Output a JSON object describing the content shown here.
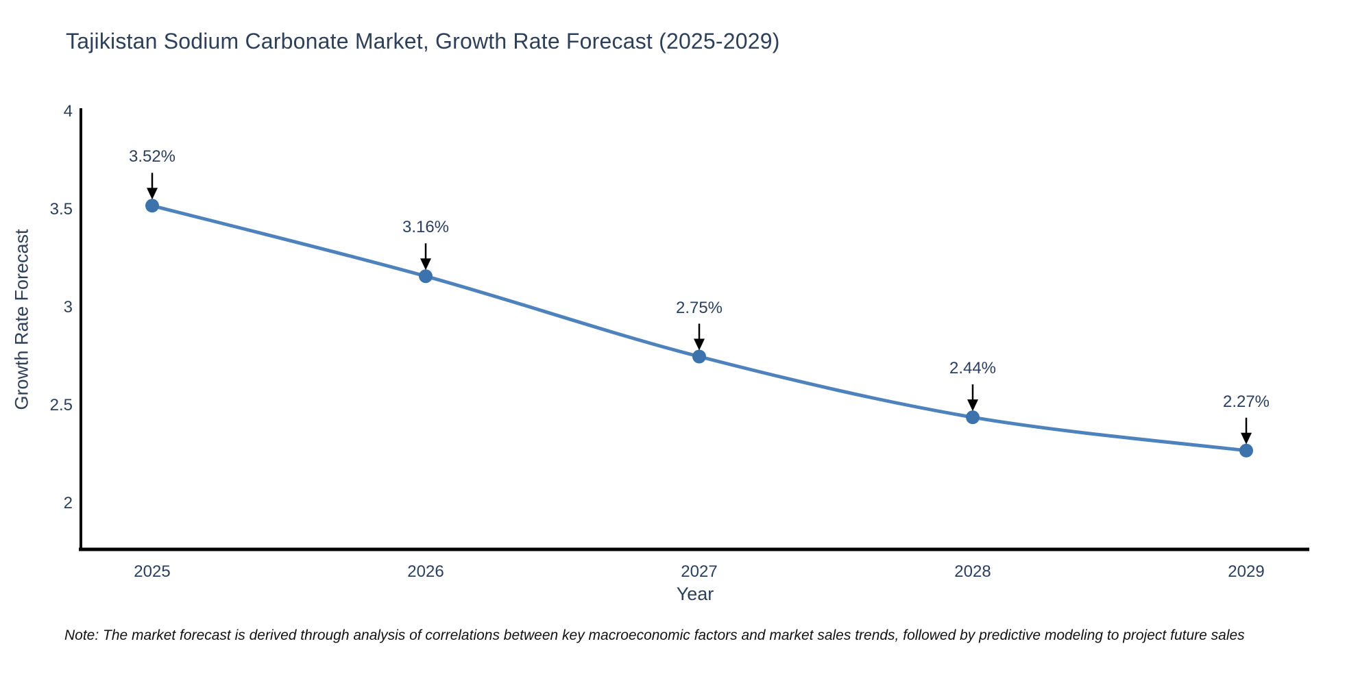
{
  "title": "Tajikistan Sodium Carbonate Market, Growth Rate Forecast (2025-2029)",
  "note": "Note: The market forecast is derived through analysis of correlations between key macroeconomic factors and market sales trends, followed by predictive modeling to project future sales",
  "chart_data": {
    "type": "line",
    "title": "Tajikistan Sodium Carbonate Market, Growth Rate Forecast (2025-2029)",
    "x": [
      2025,
      2026,
      2027,
      2028,
      2029
    ],
    "y": [
      3.52,
      3.16,
      2.75,
      2.44,
      2.27
    ],
    "point_labels": [
      "3.52%",
      "3.16%",
      "2.75%",
      "2.44%",
      "2.27%"
    ],
    "xticks": [
      "2025",
      "2026",
      "2027",
      "2028",
      "2029"
    ],
    "yticks": [
      4,
      3.5,
      3,
      2.5,
      2
    ],
    "xlabel": "Year",
    "ylabel": "Growth Rate Forecast",
    "ylim": [
      1.77,
      4.02
    ],
    "line_shape": "spline",
    "grid": false,
    "legend_position": "none",
    "annotations_have_arrows": true,
    "colors": {
      "line": "#4d82bc",
      "marker": "#3c73ac",
      "arrow": "#000000",
      "axis": "#000000",
      "tick_text": "#2a3f5f",
      "title_text": "#2e4059",
      "note_text": "#111111",
      "background": "#ffffff"
    }
  }
}
